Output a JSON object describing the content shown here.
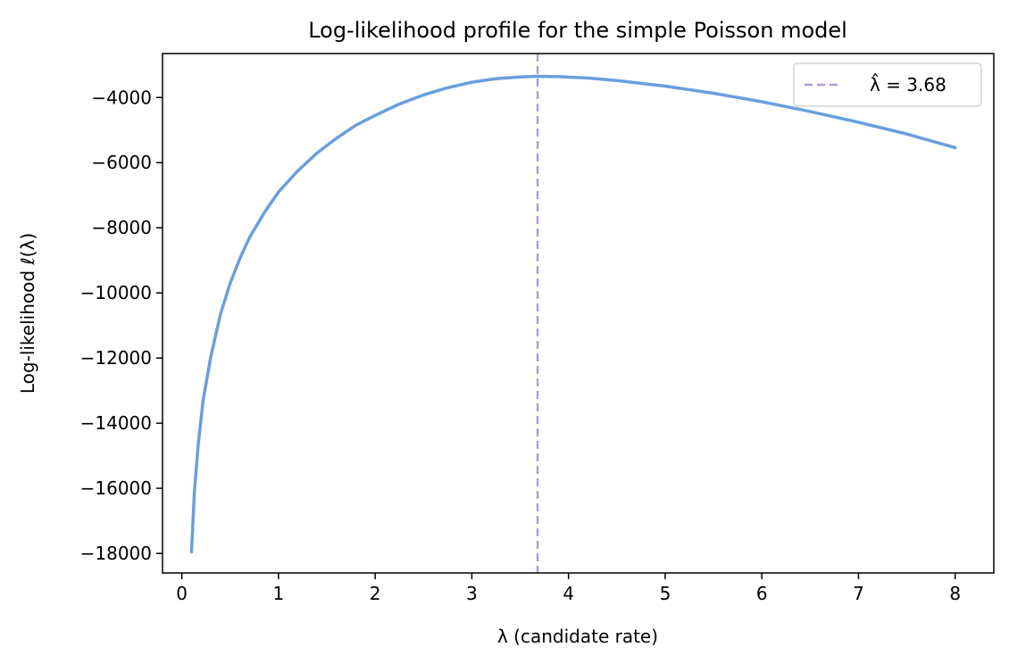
{
  "chart_data": {
    "type": "line",
    "title": "Log-likelihood profile for the simple Poisson model",
    "xlabel": "λ (candidate rate)",
    "ylabel": "Log-likelihood  ℓ(λ)",
    "xlim": [
      -0.2,
      8.4
    ],
    "ylim": [
      -18600,
      -2650
    ],
    "xticks": [
      0,
      1,
      2,
      3,
      4,
      5,
      6,
      7,
      8
    ],
    "xtick_labels": [
      "0",
      "1",
      "2",
      "3",
      "4",
      "5",
      "6",
      "7",
      "8"
    ],
    "yticks": [
      -18000,
      -16000,
      -14000,
      -12000,
      -10000,
      -8000,
      -6000,
      -4000
    ],
    "ytick_labels": [
      "−18000",
      "−16000",
      "−14000",
      "−12000",
      "−10000",
      "−8000",
      "−6000",
      "−4000"
    ],
    "grid": false,
    "legend_position": "top-right",
    "series": [
      {
        "color": "#6a9fdb",
        "style": "solid",
        "points": [
          [
            0.1,
            -17950
          ],
          [
            0.13,
            -16100
          ],
          [
            0.17,
            -14650
          ],
          [
            0.22,
            -13300
          ],
          [
            0.3,
            -11950
          ],
          [
            0.4,
            -10650
          ],
          [
            0.5,
            -9700
          ],
          [
            0.6,
            -8950
          ],
          [
            0.7,
            -8300
          ],
          [
            0.85,
            -7550
          ],
          [
            1.0,
            -6900
          ],
          [
            1.2,
            -6250
          ],
          [
            1.4,
            -5700
          ],
          [
            1.6,
            -5250
          ],
          [
            1.8,
            -4850
          ],
          [
            2.0,
            -4550
          ],
          [
            2.25,
            -4200
          ],
          [
            2.5,
            -3920
          ],
          [
            2.75,
            -3700
          ],
          [
            3.0,
            -3530
          ],
          [
            3.25,
            -3420
          ],
          [
            3.5,
            -3370
          ],
          [
            3.68,
            -3350
          ],
          [
            3.9,
            -3360
          ],
          [
            4.2,
            -3400
          ],
          [
            4.5,
            -3480
          ],
          [
            5.0,
            -3650
          ],
          [
            5.5,
            -3870
          ],
          [
            6.0,
            -4130
          ],
          [
            6.5,
            -4430
          ],
          [
            7.0,
            -4760
          ],
          [
            7.5,
            -5120
          ],
          [
            8.0,
            -5540
          ]
        ]
      }
    ],
    "vline": {
      "x": 3.68,
      "color": "#b39ddb",
      "style": "dashed",
      "label": "λ̂ = 3.68"
    }
  }
}
